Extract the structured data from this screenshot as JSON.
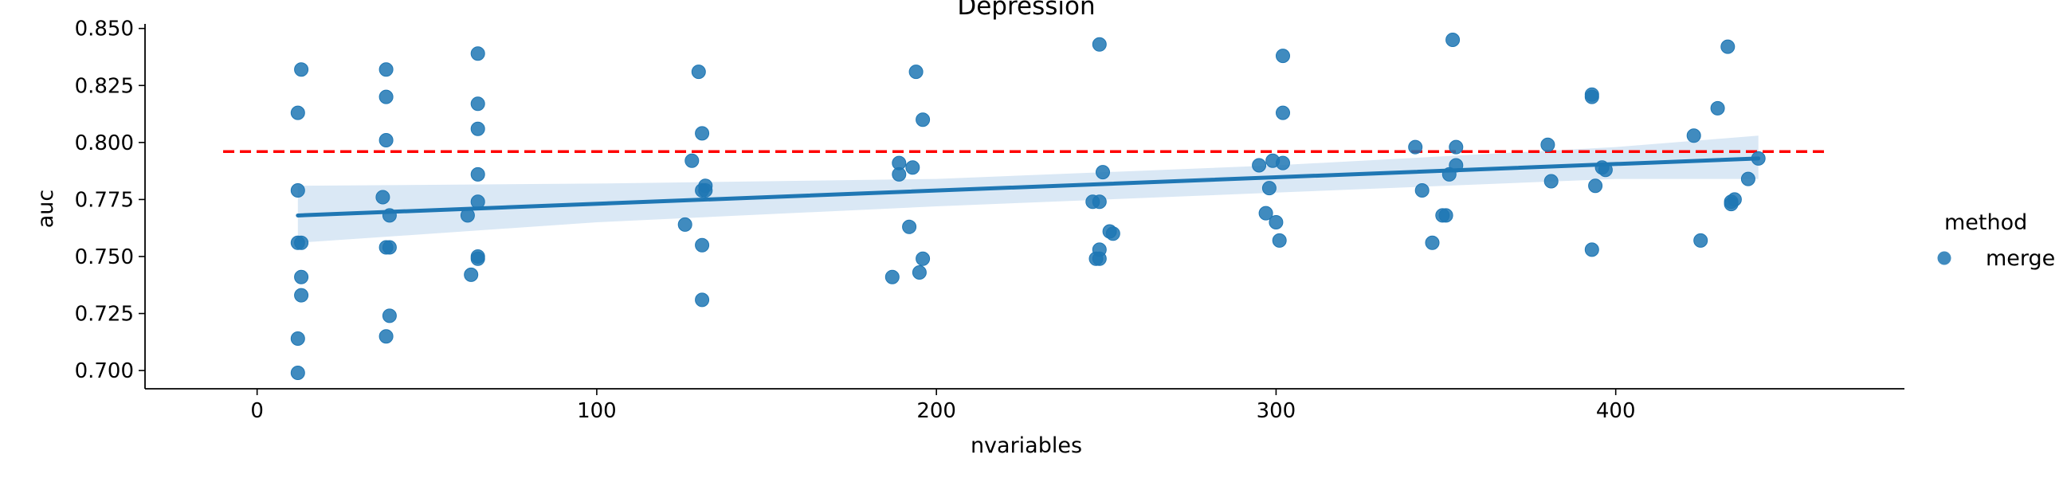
{
  "chart_data": {
    "type": "scatter",
    "title": "Depression",
    "xlabel": "nvariables",
    "ylabel": "auc",
    "xlim": [
      -33,
      485
    ],
    "ylim": [
      0.692,
      0.852
    ],
    "xticks": [
      0,
      100,
      200,
      300,
      400
    ],
    "yticks": [
      0.7,
      0.725,
      0.75,
      0.775,
      0.8,
      0.825,
      0.85
    ],
    "xtick_labels": [
      "0",
      "100",
      "200",
      "300",
      "400"
    ],
    "ytick_labels": [
      "0.700",
      "0.725",
      "0.750",
      "0.775",
      "0.800",
      "0.825",
      "0.850"
    ],
    "grid": false,
    "legend": {
      "title": "method",
      "placement": "right",
      "entries": [
        "merge"
      ]
    },
    "colors": {
      "points": "#1f77b4",
      "regression": "#1f77b4",
      "band": "#c6dbef",
      "reference": "#ff0000"
    },
    "series": [
      {
        "name": "merge",
        "points": [
          [
            13,
            0.832
          ],
          [
            12,
            0.813
          ],
          [
            12,
            0.779
          ],
          [
            12,
            0.756
          ],
          [
            13,
            0.756
          ],
          [
            13,
            0.741
          ],
          [
            13,
            0.733
          ],
          [
            12,
            0.714
          ],
          [
            12,
            0.699
          ],
          [
            38,
            0.832
          ],
          [
            38,
            0.82
          ],
          [
            38,
            0.801
          ],
          [
            37,
            0.776
          ],
          [
            39,
            0.768
          ],
          [
            38,
            0.754
          ],
          [
            39,
            0.754
          ],
          [
            39,
            0.724
          ],
          [
            38,
            0.715
          ],
          [
            65,
            0.839
          ],
          [
            65,
            0.817
          ],
          [
            65,
            0.806
          ],
          [
            65,
            0.786
          ],
          [
            65,
            0.774
          ],
          [
            62,
            0.768
          ],
          [
            65,
            0.75
          ],
          [
            65,
            0.749
          ],
          [
            63,
            0.742
          ],
          [
            130,
            0.831
          ],
          [
            131,
            0.804
          ],
          [
            128,
            0.792
          ],
          [
            132,
            0.781
          ],
          [
            131,
            0.779
          ],
          [
            132,
            0.779
          ],
          [
            126,
            0.764
          ],
          [
            131,
            0.755
          ],
          [
            131,
            0.731
          ],
          [
            194,
            0.831
          ],
          [
            196,
            0.81
          ],
          [
            189,
            0.791
          ],
          [
            193,
            0.789
          ],
          [
            189,
            0.786
          ],
          [
            192,
            0.763
          ],
          [
            196,
            0.749
          ],
          [
            195,
            0.743
          ],
          [
            187,
            0.741
          ],
          [
            248,
            0.843
          ],
          [
            249,
            0.787
          ],
          [
            246,
            0.774
          ],
          [
            248,
            0.774
          ],
          [
            251,
            0.761
          ],
          [
            252,
            0.76
          ],
          [
            248,
            0.753
          ],
          [
            247,
            0.749
          ],
          [
            248,
            0.749
          ],
          [
            302,
            0.838
          ],
          [
            302,
            0.813
          ],
          [
            295,
            0.79
          ],
          [
            299,
            0.792
          ],
          [
            302,
            0.791
          ],
          [
            298,
            0.78
          ],
          [
            297,
            0.769
          ],
          [
            300,
            0.765
          ],
          [
            301,
            0.757
          ],
          [
            352,
            0.845
          ],
          [
            341,
            0.798
          ],
          [
            353,
            0.798
          ],
          [
            353,
            0.79
          ],
          [
            351,
            0.786
          ],
          [
            343,
            0.779
          ],
          [
            349,
            0.768
          ],
          [
            350,
            0.768
          ],
          [
            346,
            0.756
          ],
          [
            393,
            0.821
          ],
          [
            393,
            0.82
          ],
          [
            380,
            0.799
          ],
          [
            396,
            0.789
          ],
          [
            397,
            0.788
          ],
          [
            381,
            0.783
          ],
          [
            394,
            0.781
          ],
          [
            393,
            0.753
          ],
          [
            433,
            0.842
          ],
          [
            430,
            0.815
          ],
          [
            423,
            0.803
          ],
          [
            442,
            0.793
          ],
          [
            439,
            0.784
          ],
          [
            435,
            0.775
          ],
          [
            434,
            0.774
          ],
          [
            434,
            0.773
          ],
          [
            425,
            0.757
          ]
        ]
      }
    ],
    "regression": {
      "x": [
        12,
        442
      ],
      "y": [
        0.768,
        0.793
      ]
    },
    "confidence_band": {
      "x": [
        12,
        100,
        200,
        300,
        400,
        442
      ],
      "upper": [
        0.781,
        0.782,
        0.784,
        0.79,
        0.798,
        0.803
      ],
      "lower": [
        0.756,
        0.765,
        0.772,
        0.778,
        0.784,
        0.784
      ]
    },
    "reference_line": {
      "y": 0.796,
      "x_from": -10,
      "x_to": 462,
      "style": "dashed"
    }
  }
}
